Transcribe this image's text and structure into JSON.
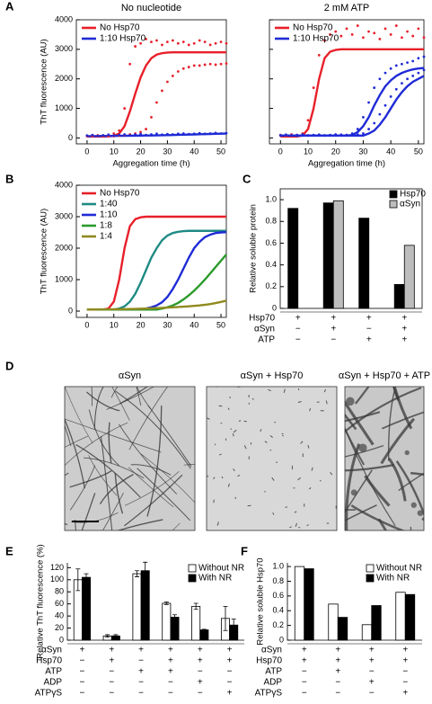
{
  "chart_data": [
    {
      "type": "line",
      "panel": "A",
      "title": "No  nucleotide",
      "xlabel": "Aggregation time (h)",
      "ylabel": "ThT fluorescence (AU)",
      "xlim": [
        -4,
        52
      ],
      "xticks": [
        0,
        10,
        20,
        30,
        40,
        50
      ],
      "ylim": [
        -200,
        4000
      ],
      "yticks": [
        0,
        1000,
        2000,
        3000,
        4000
      ],
      "x": [
        0,
        2,
        4,
        6,
        8,
        10,
        12,
        14,
        16,
        18,
        20,
        22,
        24,
        26,
        28,
        30,
        32,
        34,
        36,
        38,
        40,
        42,
        44,
        46,
        48,
        50,
        52
      ],
      "series": [
        {
          "name": "No Hsp70",
          "color": "#e8202a",
          "values": [
            50,
            50,
            50,
            50,
            55,
            70,
            150,
            400,
            900,
            1500,
            2050,
            2450,
            2700,
            2820,
            2870,
            2890,
            2900,
            2900,
            2900,
            2900,
            2900,
            2900,
            2900,
            2900,
            2900,
            2900,
            2900
          ]
        },
        {
          "name": "1:10 Hsp70",
          "color": "#1f2bd6",
          "values": [
            60,
            62,
            64,
            66,
            68,
            70,
            72,
            74,
            76,
            78,
            80,
            82,
            84,
            86,
            90,
            95,
            100,
            105,
            110,
            115,
            120,
            125,
            130,
            135,
            140,
            145,
            150
          ]
        },
        {
          "style": "dots",
          "color": "#e8202a",
          "values": [
            80,
            70,
            90,
            60,
            100,
            150,
            250,
            1000,
            2500,
            3100,
            3200,
            3350,
            3250,
            3300,
            3150,
            3250,
            3300,
            3200,
            3250,
            3150,
            3200,
            3300,
            3250,
            3150,
            3200,
            3250,
            3200
          ]
        },
        {
          "style": "dots",
          "color": "#e8202a",
          "values": [
            60,
            80,
            50,
            90,
            70,
            60,
            80,
            100,
            120,
            150,
            200,
            300,
            700,
            1200,
            1600,
            1900,
            2100,
            2250,
            2350,
            2400,
            2450,
            2450,
            2480,
            2500,
            2480,
            2500,
            2520
          ]
        },
        {
          "style": "dots",
          "color": "#1f2bd6",
          "values": [
            80,
            100,
            70,
            90,
            110,
            80,
            100,
            120,
            90,
            110,
            130,
            100,
            120,
            140,
            110,
            130,
            120,
            140,
            150,
            130,
            140,
            160,
            140,
            150,
            170,
            150,
            160
          ]
        }
      ]
    },
    {
      "type": "line",
      "title": "2 mM ATP",
      "xlabel": "Aggregation time (h)",
      "xlim": [
        -4,
        52
      ],
      "xticks": [
        0,
        10,
        20,
        30,
        40,
        50
      ],
      "ylim": [
        -200,
        4000
      ],
      "yticks": [
        0,
        1000,
        2000,
        3000,
        4000
      ],
      "x": [
        0,
        2,
        4,
        6,
        8,
        10,
        12,
        14,
        16,
        18,
        20,
        22,
        24,
        26,
        28,
        30,
        32,
        34,
        36,
        38,
        40,
        42,
        44,
        46,
        48,
        50,
        52
      ],
      "series": [
        {
          "name": "No Hsp70",
          "color": "#e8202a",
          "values": [
            50,
            50,
            50,
            50,
            80,
            300,
            1000,
            2000,
            2700,
            2920,
            2980,
            3000,
            3000,
            3000,
            3000,
            3000,
            3000,
            3000,
            3000,
            3000,
            3000,
            3000,
            3000,
            3000,
            3000,
            3000,
            3000
          ]
        },
        {
          "name": "1:10 Hsp70",
          "color": "#1f2bd6",
          "values": [
            80,
            80,
            80,
            80,
            80,
            80,
            80,
            80,
            80,
            80,
            80,
            80,
            80,
            100,
            200,
            400,
            700,
            1100,
            1450,
            1750,
            1950,
            2100,
            2200,
            2270,
            2320,
            2350,
            2370
          ]
        },
        {
          "color": "#1f2bd6",
          "values": [
            80,
            80,
            80,
            80,
            80,
            80,
            80,
            80,
            80,
            80,
            80,
            80,
            80,
            80,
            80,
            80,
            150,
            250,
            450,
            700,
            1000,
            1300,
            1550,
            1750,
            1900,
            2000,
            2100
          ]
        },
        {
          "style": "dots",
          "color": "#e8202a",
          "values": [
            100,
            90,
            120,
            100,
            150,
            600,
            1700,
            2800,
            3300,
            3500,
            3600,
            3450,
            3700,
            3500,
            3800,
            3400,
            3600,
            3550,
            3350,
            3700,
            3500,
            3800,
            3400,
            3600,
            3450,
            3700,
            3400
          ]
        },
        {
          "style": "dots",
          "color": "#1f2bd6",
          "values": [
            90,
            110,
            80,
            100,
            120,
            90,
            100,
            110,
            90,
            100,
            120,
            110,
            100,
            150,
            300,
            700,
            1200,
            1700,
            2000,
            2200,
            2350,
            2450,
            2500,
            2550,
            2600,
            2700,
            2750
          ]
        },
        {
          "style": "dots",
          "color": "#1f2bd6",
          "values": [
            80,
            100,
            90,
            70,
            100,
            80,
            90,
            100,
            80,
            90,
            100,
            90,
            100,
            90,
            110,
            150,
            300,
            500,
            800,
            1100,
            1400,
            1650,
            1850,
            2000,
            2100,
            2200,
            2300
          ]
        }
      ]
    },
    {
      "type": "line",
      "panel": "B",
      "ylabel": "ThT fluorescence (AU)",
      "xlim": [
        -4,
        52
      ],
      "xticks": [
        0,
        10,
        20,
        30,
        40,
        50
      ],
      "ylim": [
        -200,
        4000
      ],
      "yticks": [
        0,
        1000,
        2000,
        3000,
        4000
      ],
      "x": [
        0,
        2,
        4,
        6,
        8,
        10,
        12,
        14,
        16,
        18,
        20,
        22,
        24,
        26,
        28,
        30,
        32,
        34,
        36,
        38,
        40,
        42,
        44,
        46,
        48,
        50,
        52
      ],
      "series": [
        {
          "name": "No Hsp70",
          "color": "#e8202a",
          "values": [
            50,
            50,
            50,
            50,
            80,
            300,
            1000,
            2000,
            2700,
            2920,
            2980,
            3000,
            3000,
            3000,
            3000,
            3000,
            3000,
            3000,
            3000,
            3000,
            3000,
            3000,
            3000,
            3000,
            3000,
            3000,
            3000
          ]
        },
        {
          "name": "1:40",
          "color": "#1f8a84",
          "values": [
            50,
            50,
            50,
            50,
            50,
            50,
            80,
            150,
            300,
            550,
            900,
            1300,
            1700,
            2000,
            2250,
            2400,
            2480,
            2520,
            2540,
            2550,
            2550,
            2550,
            2550,
            2550,
            2550,
            2550,
            2550
          ]
        },
        {
          "name": "1:10",
          "color": "#1f2bd6",
          "values": [
            50,
            50,
            50,
            50,
            50,
            50,
            50,
            50,
            50,
            50,
            50,
            80,
            120,
            180,
            280,
            450,
            700,
            1000,
            1350,
            1700,
            2000,
            2200,
            2350,
            2430,
            2480,
            2500,
            2510
          ]
        },
        {
          "name": "1:8",
          "color": "#2a9a2a",
          "values": [
            50,
            50,
            50,
            50,
            50,
            50,
            50,
            50,
            50,
            50,
            50,
            50,
            50,
            50,
            80,
            120,
            180,
            260,
            370,
            500,
            650,
            820,
            1000,
            1200,
            1400,
            1600,
            1800
          ]
        },
        {
          "name": "1:4",
          "color": "#8f8a1f",
          "values": [
            50,
            50,
            52,
            54,
            56,
            58,
            60,
            63,
            66,
            70,
            75,
            80,
            88,
            95,
            103,
            112,
            120,
            130,
            140,
            152,
            165,
            180,
            200,
            225,
            255,
            290,
            330
          ]
        }
      ]
    },
    {
      "type": "bar",
      "panel": "C",
      "ylabel": "Relative soluble protein",
      "ylim": [
        0,
        1.1
      ],
      "yticks": [
        0,
        0.2,
        0.4,
        0.6,
        0.8,
        {
          "value": 1,
          "label": "1.0"
        }
      ],
      "series": [
        {
          "name": "Hsp70",
          "color": "#000000",
          "values": [
            0.92,
            0.97,
            0.83,
            0.22
          ]
        },
        {
          "name": "αSyn",
          "color": "#bdbdbd",
          "values": [
            null,
            0.99,
            null,
            0.58
          ]
        }
      ],
      "conditions": [
        {
          "label": "Hsp70",
          "marks": [
            "+",
            "+",
            "+",
            "+"
          ]
        },
        {
          "label": "αSyn",
          "marks": [
            "−",
            "+",
            "−",
            "+"
          ]
        },
        {
          "label": "ATP",
          "marks": [
            "−",
            "−",
            "+",
            "+"
          ]
        }
      ]
    },
    {
      "type": "image",
      "panel": "D",
      "images": [
        "αSyn",
        "αSyn + Hsp70",
        "αSyn + Hsp70 + ATP"
      ]
    },
    {
      "type": "bar",
      "panel": "E",
      "ylabel": "Relative ThT fluorescence (%)",
      "ylim": [
        0,
        128
      ],
      "yticks": [
        0,
        20,
        40,
        60,
        80,
        100,
        120
      ],
      "series": [
        {
          "name": "Without NR",
          "color": "#ffffff",
          "values": [
            100,
            7,
            110,
            61,
            56,
            36
          ],
          "errors": [
            18,
            2,
            5,
            2,
            5,
            20
          ]
        },
        {
          "name": "With NR",
          "color": "#000000",
          "values": [
            104,
            7,
            115,
            38,
            17,
            25
          ],
          "errors": [
            6,
            2,
            14,
            4,
            1,
            10
          ]
        }
      ],
      "conditions": [
        {
          "label": "αSyn",
          "marks": [
            "+",
            "+",
            "+",
            "+",
            "+",
            "+"
          ]
        },
        {
          "label": "Hsp70",
          "marks": [
            "−",
            "+",
            "−",
            "+",
            "+",
            "+"
          ]
        },
        {
          "label": "ATP",
          "marks": [
            "−",
            "−",
            "+",
            "+",
            "−",
            "−"
          ]
        },
        {
          "label": "ADP",
          "marks": [
            "−",
            "−",
            "−",
            "−",
            "+",
            "−"
          ]
        },
        {
          "label": "ATPγS",
          "marks": [
            "−",
            "−",
            "−",
            "−",
            "−",
            "+"
          ]
        }
      ]
    },
    {
      "type": "bar",
      "panel": "F",
      "ylabel": "Relative soluble Hsp70",
      "ylim": [
        0,
        1.05
      ],
      "yticks": [
        0,
        0.2,
        0.4,
        0.6,
        0.8,
        {
          "value": 1,
          "label": "1.0"
        }
      ],
      "series": [
        {
          "name": "Without NR",
          "color": "#ffffff",
          "values": [
            1.0,
            0.49,
            0.21,
            0.65
          ]
        },
        {
          "name": "With NR",
          "color": "#000000",
          "values": [
            0.97,
            0.31,
            0.47,
            0.62
          ]
        }
      ],
      "conditions": [
        {
          "label": "αSyn",
          "marks": [
            "+",
            "+",
            "+",
            "+"
          ]
        },
        {
          "label": "Hsp70",
          "marks": [
            "+",
            "+",
            "+",
            "+"
          ]
        },
        {
          "label": "ATP",
          "marks": [
            "−",
            "+",
            "−",
            "−"
          ]
        },
        {
          "label": "ADP",
          "marks": [
            "−",
            "−",
            "+",
            "−"
          ]
        },
        {
          "label": "ATPγS",
          "marks": [
            "−",
            "−",
            "−",
            "+"
          ]
        }
      ]
    }
  ]
}
